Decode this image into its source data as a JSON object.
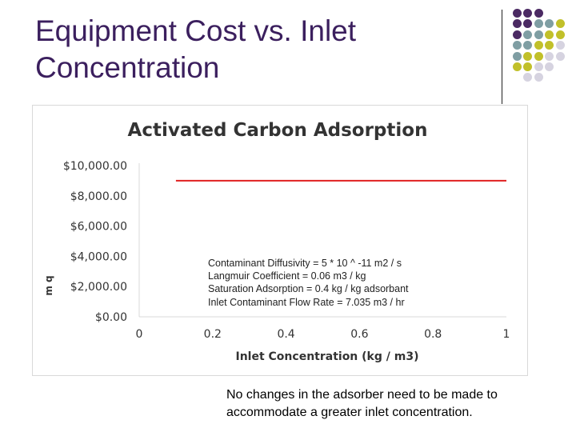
{
  "slide": {
    "title_line1": "Equipment Cost vs. Inlet",
    "title_line2": "Concentration",
    "caption_line1": "No changes in the adsorber need to be made to",
    "caption_line2": "accommodate a greater inlet concentration."
  },
  "colors": {
    "title": "#3b1f5e",
    "series_line": "#e02020",
    "dot_purple": "#4b2a63",
    "dot_teal": "#7f9ea3",
    "dot_olive": "#c1c02a",
    "dot_light": "#d6d3e0"
  },
  "decoration": {
    "dot_grid_colors": [
      [
        "dot_purple",
        "dot_purple",
        "dot_purple",
        null,
        null
      ],
      [
        "dot_purple",
        "dot_purple",
        "dot_teal",
        "dot_teal",
        "dot_olive"
      ],
      [
        "dot_purple",
        "dot_teal",
        "dot_teal",
        "dot_olive",
        "dot_olive"
      ],
      [
        "dot_teal",
        "dot_teal",
        "dot_olive",
        "dot_olive",
        "dot_light"
      ],
      [
        "dot_teal",
        "dot_olive",
        "dot_olive",
        "dot_light",
        "dot_light"
      ],
      [
        "dot_olive",
        "dot_olive",
        "dot_light",
        "dot_light",
        null
      ],
      [
        null,
        "dot_light",
        "dot_light",
        null,
        null
      ]
    ]
  },
  "chart_data": {
    "type": "line",
    "title": "Activated Carbon Adsorption",
    "xlabel": "Inlet Concentration (kg / m3)",
    "ylabel": "m q",
    "xlim": [
      0,
      1
    ],
    "ylim": [
      0,
      10000
    ],
    "x_ticks": [
      0,
      0.2,
      0.4,
      0.6,
      0.8,
      1
    ],
    "x_tick_labels": [
      "0",
      "0.2",
      "0.4",
      "0.6",
      "0.8",
      "1"
    ],
    "y_ticks": [
      0,
      2000,
      4000,
      6000,
      8000,
      10000
    ],
    "y_tick_labels": [
      "$0.00",
      "$2,000.00",
      "$4,000.00",
      "$6,000.00",
      "$8,000.00",
      "$10,000.00"
    ],
    "grid": false,
    "series": [
      {
        "x": [
          0.1,
          1.0
        ],
        "y": [
          9000,
          9000
        ],
        "color": "#e02020"
      }
    ],
    "annotations": [
      "Contaminant Diffusivity = 5 * 10 ^ -11 m2 / s",
      "Langmuir Coefficient = 0.06 m3 / kg",
      "Saturation Adsorption = 0.4 kg / kg adsorbant",
      "Inlet Contaminant Flow Rate = 7.035 m3 / hr"
    ]
  }
}
